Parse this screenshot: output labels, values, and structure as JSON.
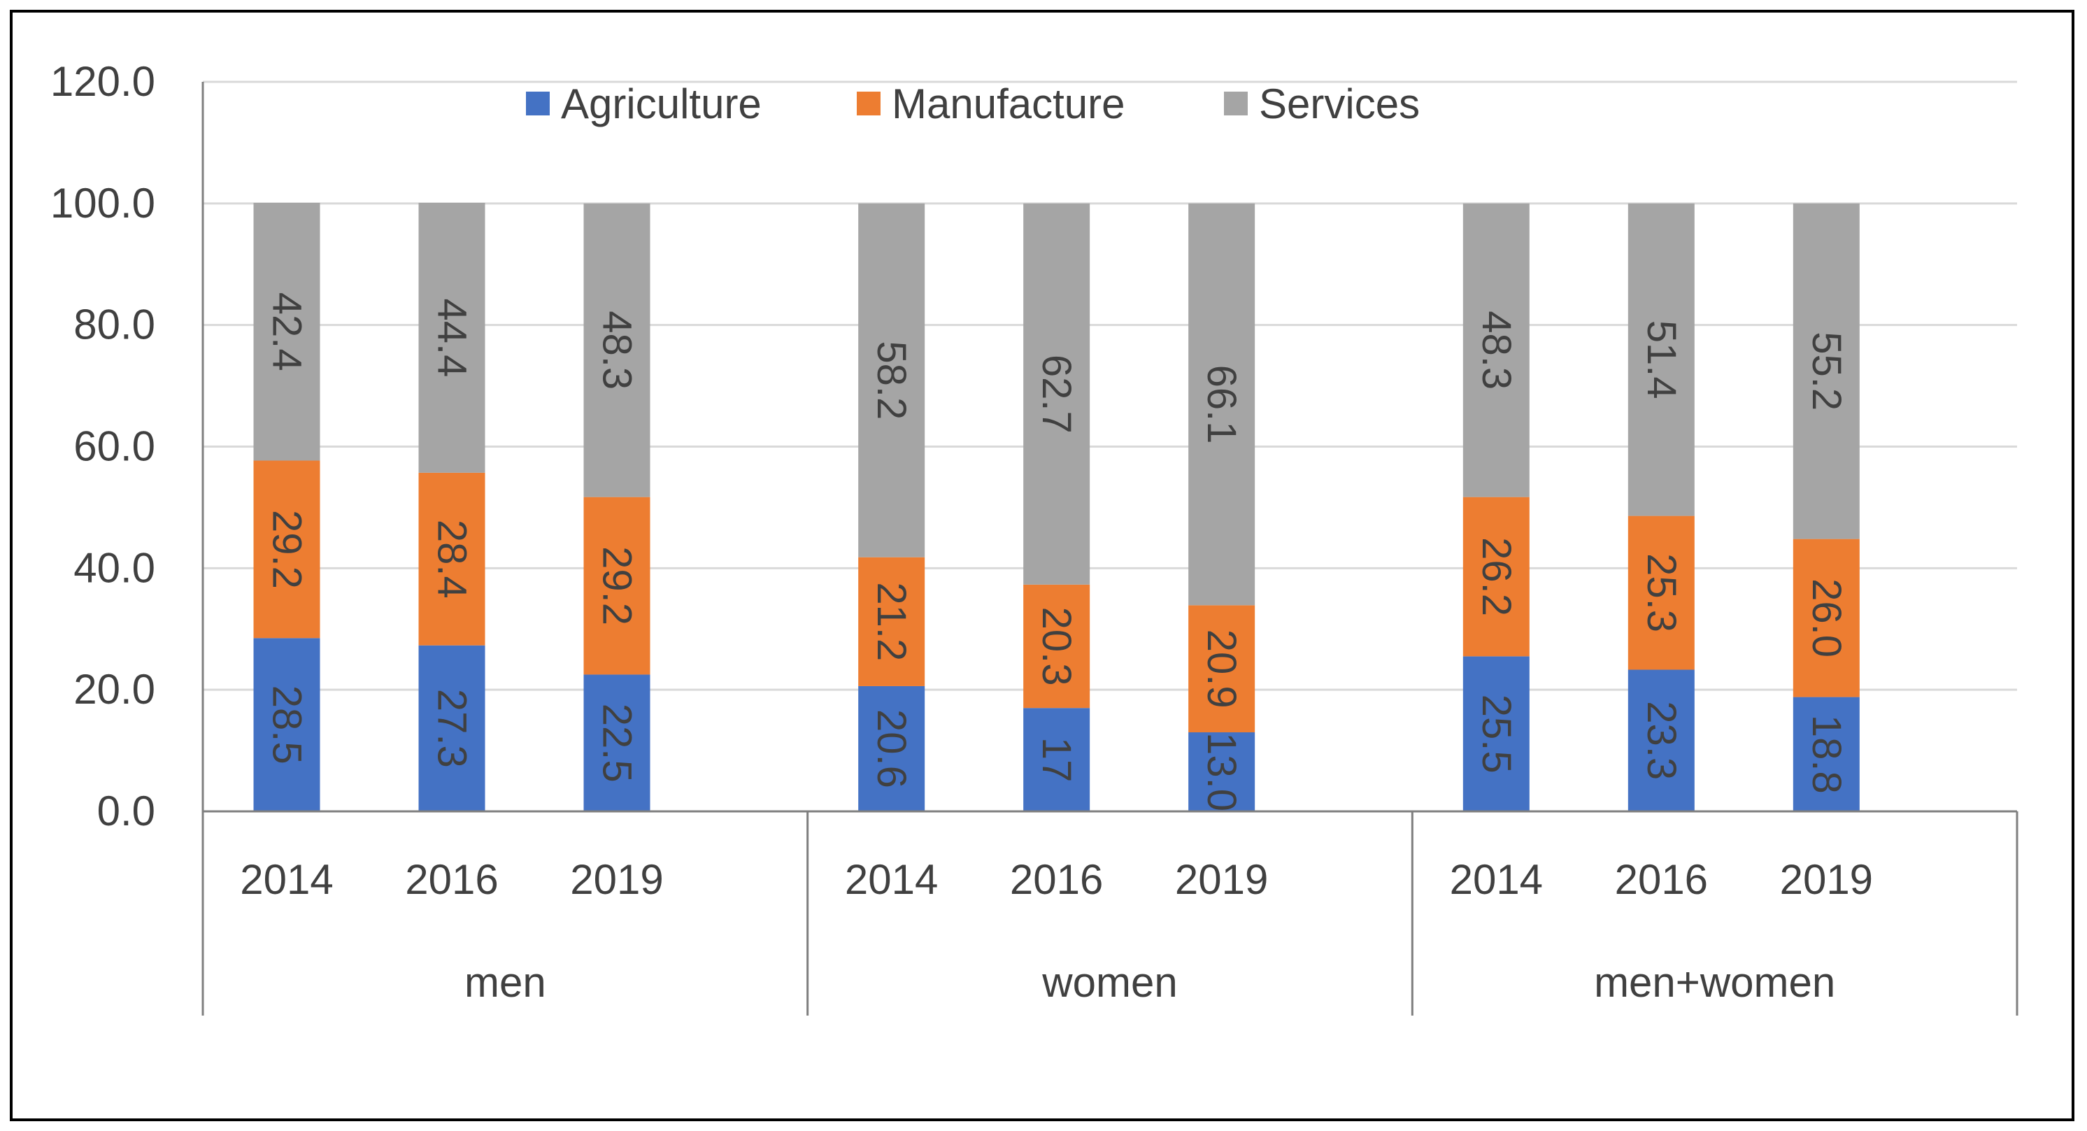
{
  "chart_data": {
    "type": "bar",
    "stacked": true,
    "groups": [
      {
        "label": "men",
        "years": [
          "2014",
          "2016",
          "2019"
        ]
      },
      {
        "label": "women",
        "years": [
          "2014",
          "2016",
          "2019"
        ]
      },
      {
        "label": "men+women",
        "years": [
          "2014",
          "2016",
          "2019"
        ]
      }
    ],
    "series": [
      {
        "name": "Agriculture",
        "color": "#4472C4",
        "values": [
          28.5,
          27.3,
          22.5,
          20.6,
          17,
          13.0,
          25.5,
          23.3,
          18.8
        ],
        "labels": [
          "28.5",
          "27.3",
          "22.5",
          "20.6",
          "17",
          "13.0",
          "25.5",
          "23.3",
          "18.8"
        ]
      },
      {
        "name": "Manufacture",
        "color": "#ED7D31",
        "values": [
          29.2,
          28.4,
          29.2,
          21.2,
          20.3,
          20.9,
          26.2,
          25.3,
          26.0
        ],
        "labels": [
          "29.2",
          "28.4",
          "29.2",
          "21.2",
          "20.3",
          "20.9",
          "26.2",
          "25.3",
          "26.0"
        ]
      },
      {
        "name": "Services",
        "color": "#A5A5A5",
        "values": [
          42.4,
          44.4,
          48.3,
          58.2,
          62.7,
          66.1,
          48.3,
          51.4,
          55.2
        ],
        "labels": [
          "42.4",
          "44.4",
          "48.3",
          "58.2",
          "62.7",
          "66.1",
          "48.3",
          "51.4",
          "55.2"
        ]
      }
    ],
    "ylim": [
      0,
      120
    ],
    "yticks": [
      "0.0",
      "20.0",
      "40.0",
      "60.0",
      "80.0",
      "100.0",
      "120.0"
    ],
    "legend_position": "top-center",
    "grid": true,
    "title": "",
    "xlabel": "",
    "ylabel": ""
  }
}
